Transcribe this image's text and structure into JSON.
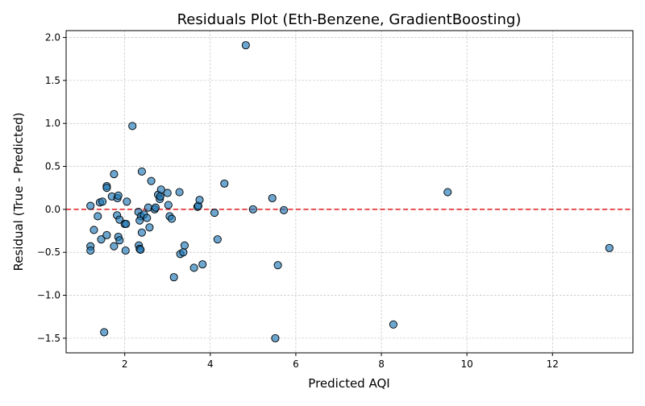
{
  "chart_data": {
    "type": "scatter",
    "title": "Residuals Plot (Eth-Benzene, GradientBoosting)",
    "xlabel": "Predicted AQI",
    "ylabel": "Residual (True - Predicted)",
    "xlim": [
      0.63,
      13.88
    ],
    "ylim": [
      -1.67,
      2.08
    ],
    "xticks": [
      2,
      4,
      6,
      8,
      10,
      12
    ],
    "xtick_labels": [
      "2",
      "4",
      "6",
      "8",
      "10",
      "12"
    ],
    "yticks": [
      -1.5,
      -1.0,
      -0.5,
      0.0,
      0.5,
      1.0,
      1.5,
      2.0
    ],
    "ytick_labels": [
      "−1.5",
      "−1.0",
      "−0.5",
      "0.0",
      "0.5",
      "1.0",
      "1.5",
      "2.0"
    ],
    "grid": true,
    "reference_line": {
      "y": 0,
      "style": "dashed",
      "color": "#e31a1c"
    },
    "colors": {
      "point_fill": "#1f77b4",
      "point_edge": "#000000"
    },
    "series": [
      {
        "points": [
          [
            1.2,
            0.04
          ],
          [
            1.37,
            -0.08
          ],
          [
            1.42,
            0.08
          ],
          [
            1.48,
            0.09
          ],
          [
            1.58,
            0.27
          ],
          [
            1.58,
            0.25
          ],
          [
            1.7,
            0.15
          ],
          [
            1.75,
            0.41
          ],
          [
            1.83,
            0.13
          ],
          [
            1.85,
            0.16
          ],
          [
            2.05,
            0.09
          ],
          [
            2.18,
            0.97
          ],
          [
            1.28,
            -0.24
          ],
          [
            1.2,
            -0.43
          ],
          [
            1.2,
            -0.48
          ],
          [
            1.45,
            -0.35
          ],
          [
            1.58,
            -0.3
          ],
          [
            1.75,
            -0.43
          ],
          [
            1.82,
            -0.07
          ],
          [
            1.88,
            -0.12
          ],
          [
            1.85,
            -0.32
          ],
          [
            1.88,
            -0.36
          ],
          [
            2.0,
            -0.17
          ],
          [
            2.03,
            -0.17
          ],
          [
            2.02,
            -0.48
          ],
          [
            2.32,
            -0.03
          ],
          [
            2.38,
            -0.08
          ],
          [
            2.35,
            -0.13
          ],
          [
            2.4,
            -0.27
          ],
          [
            2.33,
            -0.42
          ],
          [
            2.35,
            -0.46
          ],
          [
            2.37,
            -0.47
          ],
          [
            2.4,
            0.44
          ],
          [
            2.45,
            -0.06
          ],
          [
            2.52,
            -0.1
          ],
          [
            2.55,
            0.02
          ],
          [
            2.58,
            -0.21
          ],
          [
            2.62,
            0.33
          ],
          [
            2.7,
            0.0
          ],
          [
            2.72,
            0.02
          ],
          [
            2.78,
            0.17
          ],
          [
            2.82,
            0.12
          ],
          [
            2.83,
            0.15
          ],
          [
            2.85,
            0.23
          ],
          [
            3.0,
            0.19
          ],
          [
            3.02,
            0.05
          ],
          [
            3.05,
            -0.08
          ],
          [
            3.1,
            -0.11
          ],
          [
            3.15,
            -0.79
          ],
          [
            3.28,
            0.2
          ],
          [
            3.3,
            -0.52
          ],
          [
            3.37,
            -0.5
          ],
          [
            3.4,
            -0.42
          ],
          [
            3.62,
            -0.68
          ],
          [
            3.7,
            0.03
          ],
          [
            3.72,
            0.04
          ],
          [
            3.75,
            0.11
          ],
          [
            3.82,
            -0.64
          ],
          [
            4.1,
            -0.04
          ],
          [
            4.17,
            -0.35
          ],
          [
            4.33,
            0.3
          ],
          [
            4.83,
            1.91
          ],
          [
            5.0,
            0.0
          ],
          [
            5.45,
            0.13
          ],
          [
            5.52,
            -1.5
          ],
          [
            5.58,
            -0.65
          ],
          [
            5.72,
            -0.01
          ],
          [
            1.52,
            -1.43
          ],
          [
            8.28,
            -1.34
          ],
          [
            9.55,
            0.2
          ],
          [
            13.33,
            -0.45
          ]
        ]
      }
    ]
  }
}
